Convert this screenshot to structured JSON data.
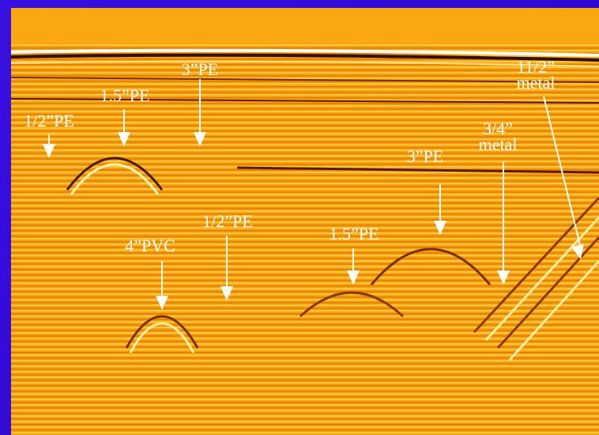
{
  "annotations": [
    {
      "lines": [
        "1/2”PE"
      ]
    },
    {
      "lines": [
        "1.5”PE"
      ]
    },
    {
      "lines": [
        "3”PE"
      ]
    },
    {
      "lines": [
        "11/2”",
        "metal"
      ]
    },
    {
      "lines": [
        "3/4”",
        "metal"
      ]
    },
    {
      "lines": [
        "3”PE"
      ]
    },
    {
      "lines": [
        "1/2”PE"
      ]
    },
    {
      "lines": [
        "4”PVC"
      ]
    },
    {
      "lines": [
        "1.5”PE"
      ]
    }
  ]
}
